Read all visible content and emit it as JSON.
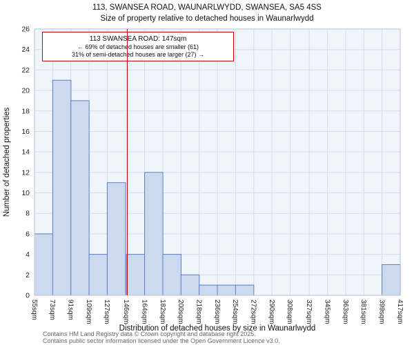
{
  "annotation": {
    "line1": "113 SWANSEA ROAD: 147sqm",
    "line2": "← 69% of detached houses are smaller (61)",
    "line3": "31% of semi-detached houses are larger (27) →"
  },
  "footer": {
    "line1": "Contains HM Land Registry data © Crown copyright and database right 2025.",
    "line2": "Contains public sector information licensed under the Open Government Licence v3.0."
  },
  "chart_data": {
    "type": "bar",
    "title": "113, SWANSEA ROAD, WAUNARLWYDD, SWANSEA, SA5 4SS",
    "subtitle": "Size of property relative to detached houses in Waunarlwydd",
    "xlabel": "Distribution of detached houses by size in Waunarlwydd",
    "ylabel": "Number of detached properties",
    "bin_edges": [
      55,
      73,
      91,
      109,
      127,
      146,
      164,
      182,
      200,
      218,
      236,
      254,
      272,
      290,
      308,
      327,
      345,
      363,
      381,
      399,
      417
    ],
    "tick_labels": [
      "55sqm",
      "73sqm",
      "91sqm",
      "109sqm",
      "127sqm",
      "146sqm",
      "164sqm",
      "182sqm",
      "200sqm",
      "218sqm",
      "236sqm",
      "254sqm",
      "272sqm",
      "290sqm",
      "308sqm",
      "327sqm",
      "345sqm",
      "363sqm",
      "381sqm",
      "399sqm",
      "417sqm"
    ],
    "values": [
      6,
      21,
      19,
      4,
      11,
      4,
      12,
      4,
      2,
      1,
      1,
      1,
      0,
      0,
      0,
      0,
      0,
      0,
      0,
      3
    ],
    "ylim": [
      0,
      26
    ],
    "ytick_step": 2,
    "grid": true,
    "legend": false,
    "marker_value": 147,
    "colors": {
      "bar_fill": "#cdd9ee",
      "bar_border": "#5b7fc0",
      "marker": "#cc0000",
      "grid": "#d4ddee",
      "plot_bg": "#f0f4fb",
      "frame": "#b8c0d0",
      "text": "#222222",
      "footer_text": "#666666"
    }
  }
}
